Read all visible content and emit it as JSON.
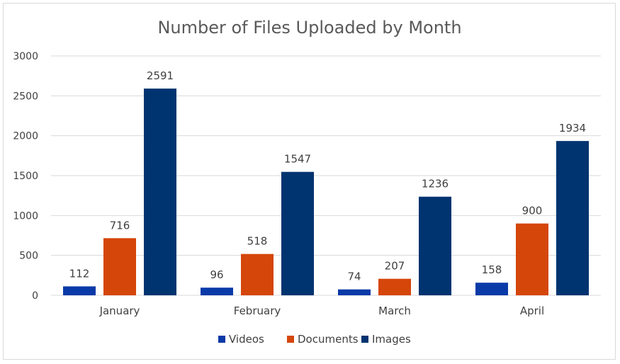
{
  "chart_data": {
    "type": "bar",
    "title": "Number of Files Uploaded by Month",
    "categories": [
      "January",
      "February",
      "March",
      "April"
    ],
    "series": [
      {
        "name": "Videos",
        "values": [
          112,
          96,
          74,
          158
        ],
        "color": "#0a3aa8"
      },
      {
        "name": "Documents",
        "values": [
          716,
          518,
          207,
          900
        ],
        "color": "#d5460a"
      },
      {
        "name": "Images",
        "values": [
          2591,
          1547,
          1236,
          1934
        ],
        "color": "#003470"
      }
    ],
    "y_ticks": [
      "0",
      "500",
      "1000",
      "1500",
      "2000",
      "2500",
      "3000"
    ],
    "ylim": [
      0,
      3000
    ],
    "xlabel": "",
    "ylabel": "",
    "grid": true,
    "legend_position": "bottom"
  }
}
